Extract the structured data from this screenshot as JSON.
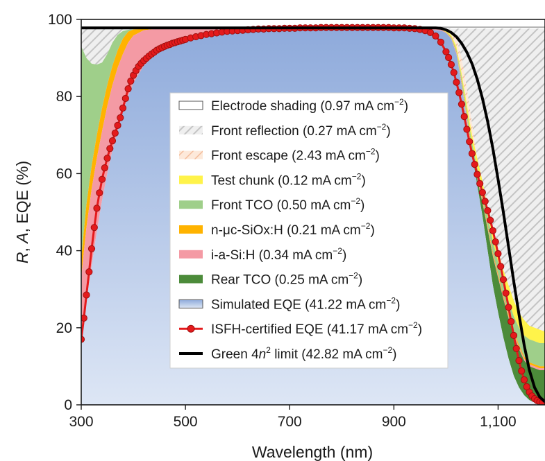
{
  "chart_data": {
    "type": "area",
    "xlabel": "Wavelength (nm)",
    "ylabel": "R, A, EQE (%)",
    "xlim": [
      300,
      1190
    ],
    "ylim": [
      0,
      100
    ],
    "x_ticks": [
      300,
      500,
      700,
      900,
      1100
    ],
    "x_tick_labels": [
      "300",
      "500",
      "700",
      "900",
      "1,100"
    ],
    "y_ticks": [
      0,
      20,
      40,
      60,
      80,
      100
    ],
    "y_tick_labels": [
      "0",
      "20",
      "40",
      "60",
      "80",
      "100"
    ],
    "colors": {
      "electrode": "#ffffff",
      "reflection": "#dcdcdc",
      "escape": "#fbe0cc",
      "test_chunk": "#fff34a",
      "front_tco": "#9fcf8a",
      "n_layer": "#ffb300",
      "i_layer": "#f49aa4",
      "rear_tco": "#4c8b3a",
      "sim_top": "#8eaadb",
      "sim_bottom": "#dde6f5",
      "isfh": "#e41a1c",
      "isfh_marker_stroke": "#a01010",
      "green_limit": "#000000"
    },
    "legend": [
      {
        "key": "electrode",
        "label": "Electrode shading (0.97 mA cm",
        "sup": "−2",
        "end": ")"
      },
      {
        "key": "reflection",
        "label": "Front reflection (0.27 mA cm",
        "sup": "−2",
        "end": ")"
      },
      {
        "key": "escape",
        "label": "Front escape (2.43 mA cm",
        "sup": "−2",
        "end": ")"
      },
      {
        "key": "test_chunk",
        "label": "Test chunk (0.12 mA cm",
        "sup": "−2",
        "end": ")"
      },
      {
        "key": "front_tco",
        "label": "Front TCO (0.50 mA cm",
        "sup": "−2",
        "end": ")"
      },
      {
        "key": "n_layer",
        "label": "n-μc-SiOx:H (0.21 mA cm",
        "sup": "−2",
        "end": ")"
      },
      {
        "key": "i_layer",
        "label": "i-a-Si:H (0.34 mA cm",
        "sup": "−2",
        "end": ")"
      },
      {
        "key": "rear_tco",
        "label": "Rear TCO (0.25 mA cm",
        "sup": "−2",
        "end": ")"
      },
      {
        "key": "simulated",
        "label": "Simulated EQE (41.22 mA cm",
        "sup": "−2",
        "end": ")"
      },
      {
        "key": "isfh",
        "label": "ISFH-certified EQE (41.17 mA cm",
        "sup": "−2",
        "end": ")"
      },
      {
        "key": "green",
        "label_pre": "Green 4",
        "label_n": "n",
        "label_2": "2",
        "label": " limit (42.82 mA cm",
        "sup": "−2",
        "end": ")"
      }
    ],
    "boundaries": {
      "x": [
        300,
        310,
        320,
        330,
        340,
        350,
        360,
        370,
        380,
        390,
        400,
        420,
        440,
        460,
        480,
        500,
        550,
        600,
        650,
        700,
        750,
        800,
        850,
        900,
        950,
        970,
        990,
        1000,
        1010,
        1020,
        1030,
        1040,
        1050,
        1060,
        1070,
        1080,
        1090,
        1100,
        1110,
        1120,
        1130,
        1140,
        1150,
        1160,
        1170,
        1180,
        1190
      ],
      "electrode_top": [
        98,
        98,
        98,
        98,
        98,
        98,
        98,
        98,
        98,
        98,
        98,
        98,
        98,
        98,
        98,
        98,
        98,
        98,
        98,
        98,
        98,
        98,
        98,
        98,
        98,
        98,
        98,
        98,
        98,
        98,
        98,
        98,
        98,
        98,
        98,
        98,
        98,
        98,
        98,
        98,
        98,
        98,
        98,
        98,
        98,
        98,
        98
      ],
      "reflection_top": [
        97.6,
        97.6,
        97.6,
        97.6,
        97.6,
        97.6,
        97.6,
        97.6,
        97.6,
        97.6,
        97.6,
        97.6,
        97.6,
        97.6,
        97.6,
        97.6,
        97.6,
        97.6,
        97.6,
        97.6,
        97.6,
        97.6,
        97.6,
        97.6,
        97.6,
        97.6,
        97.6,
        97.6,
        97.6,
        97.6,
        97.6,
        97.6,
        97.6,
        97.6,
        97.6,
        97.6,
        97.6,
        97.6,
        97.6,
        97.6,
        97.6,
        97.6,
        97.6,
        97.6,
        97.6,
        97.6,
        97.6
      ],
      "escape_top": [
        93,
        90,
        88.5,
        88.3,
        88.8,
        91,
        94,
        96,
        97,
        97.3,
        97.4,
        97.5,
        97.5,
        97.5,
        97.5,
        97.5,
        97.5,
        97.5,
        97.5,
        97.5,
        97.5,
        97.5,
        97.5,
        97.5,
        97.5,
        97.5,
        97.4,
        97.2,
        96.5,
        95,
        90,
        82,
        73,
        64,
        56,
        48,
        40,
        33,
        27,
        21,
        16,
        11.5,
        8,
        5.5,
        3.5,
        2,
        1
      ],
      "test_top": [
        93,
        90,
        88.5,
        88.3,
        88.8,
        91,
        94,
        96,
        97,
        97.3,
        97.4,
        97.5,
        97.5,
        97.5,
        97.5,
        97.5,
        97.5,
        97.5,
        97.5,
        97.5,
        97.5,
        97.5,
        97.5,
        97.5,
        97.5,
        97.5,
        97.4,
        97,
        96,
        93,
        86,
        78,
        70,
        64,
        58,
        51,
        45,
        40,
        35,
        31,
        27,
        24,
        22,
        20.5,
        20,
        19.5,
        19
      ],
      "fronttco_top": [
        93,
        90,
        88.5,
        88.3,
        88.8,
        91,
        94,
        96,
        97,
        97.3,
        97.4,
        97.5,
        97.5,
        97.5,
        97.5,
        97.5,
        97.5,
        97.5,
        97.5,
        97.5,
        97.5,
        97.5,
        97.5,
        97.5,
        97.5,
        97.5,
        97.4,
        96.8,
        95.6,
        92.2,
        85,
        76.5,
        68,
        61.5,
        56,
        49,
        42.5,
        37,
        32,
        27,
        23,
        20,
        18,
        17,
        16.5,
        16,
        16
      ],
      "n_top": [
        38,
        52,
        62,
        70,
        77,
        83,
        88,
        92,
        95,
        96.8,
        97.4,
        97.5,
        97.5,
        97.5,
        97.5,
        97.5,
        97.5,
        97.5,
        97.5,
        97.5,
        97.5,
        97.5,
        97.5,
        97.5,
        97.5,
        97.5,
        97.4,
        96.7,
        95.4,
        91.7,
        84,
        75,
        66,
        59.5,
        53.5,
        46.5,
        39.5,
        34,
        28.5,
        23.5,
        19,
        15.5,
        12.5,
        11,
        10.5,
        10,
        10
      ],
      "i_top": [
        33,
        46,
        56,
        64,
        71,
        77.5,
        83,
        87.5,
        91,
        94,
        95.8,
        97.2,
        97.5,
        97.5,
        97.5,
        97.5,
        97.5,
        97.5,
        97.5,
        97.5,
        97.5,
        97.5,
        97.5,
        97.5,
        97.5,
        97.5,
        97.4,
        96.6,
        95.2,
        91.4,
        83.5,
        74.5,
        65.5,
        59,
        53,
        46,
        39,
        33.5,
        28,
        23,
        18.5,
        15,
        12,
        10.5,
        10,
        9.5,
        9.5
      ],
      "rear_top": [
        18,
        27,
        36,
        45,
        53,
        60,
        66,
        71,
        76,
        80,
        83.5,
        88,
        90.6,
        92.4,
        93.6,
        94.4,
        95.8,
        96.6,
        97,
        97.3,
        97.5,
        97.6,
        97.6,
        97.5,
        97.4,
        97.3,
        97.1,
        96.5,
        95,
        91,
        83,
        74,
        65,
        58.5,
        52.5,
        45.5,
        38.5,
        33,
        27.5,
        22.5,
        18,
        14.5,
        11.5,
        10,
        9.5,
        9,
        9
      ],
      "sim_top": [
        18,
        27,
        36,
        45,
        53,
        60,
        66,
        71,
        76,
        80,
        83.5,
        88,
        90.6,
        92.4,
        93.6,
        94.4,
        95.8,
        96.6,
        97,
        97.3,
        97.5,
        97.6,
        97.6,
        97.5,
        97.4,
        97.3,
        97.1,
        96.5,
        95,
        91,
        83,
        74,
        65,
        57,
        49,
        40,
        31,
        24,
        17.5,
        12,
        7.5,
        4.5,
        2.5,
        1.2,
        0.6,
        0.3,
        0.2
      ]
    },
    "series": [
      {
        "name": "ISFH-certified EQE",
        "x": [
          300,
          305,
          310,
          315,
          320,
          325,
          330,
          335,
          340,
          345,
          350,
          355,
          360,
          365,
          370,
          375,
          380,
          385,
          390,
          395,
          400,
          405,
          410,
          415,
          420,
          425,
          430,
          435,
          440,
          445,
          450,
          455,
          460,
          465,
          470,
          475,
          480,
          485,
          490,
          495,
          500,
          510,
          520,
          530,
          540,
          550,
          560,
          570,
          580,
          590,
          600,
          610,
          620,
          630,
          640,
          650,
          660,
          670,
          680,
          690,
          700,
          710,
          720,
          730,
          740,
          750,
          760,
          770,
          780,
          790,
          800,
          810,
          820,
          830,
          840,
          850,
          860,
          870,
          880,
          890,
          900,
          910,
          920,
          930,
          940,
          950,
          960,
          970,
          980,
          990,
          1000,
          1005,
          1010,
          1015,
          1020,
          1025,
          1030,
          1035,
          1040,
          1045,
          1050,
          1055,
          1060,
          1065,
          1070,
          1075,
          1080,
          1085,
          1090,
          1095,
          1100,
          1105,
          1110,
          1115,
          1120,
          1125,
          1130,
          1135,
          1140,
          1145,
          1150,
          1155,
          1160,
          1165,
          1170,
          1175,
          1180,
          1185
        ],
        "y": [
          17,
          22.5,
          28.5,
          34.5,
          40.5,
          46,
          51,
          55,
          58.5,
          61.5,
          64,
          66.5,
          68.5,
          70.5,
          72.5,
          74.5,
          77,
          79.5,
          82,
          84,
          85.5,
          86.7,
          87.8,
          88.6,
          89.3,
          89.9,
          90.5,
          91,
          91.5,
          92,
          92.4,
          92.7,
          93,
          93.3,
          93.5,
          93.8,
          94,
          94.2,
          94.4,
          94.6,
          94.8,
          95.2,
          95.5,
          95.8,
          96.1,
          96.3,
          96.5,
          96.7,
          96.9,
          97,
          97.1,
          97.2,
          97.3,
          97.4,
          97.5,
          97.5,
          97.6,
          97.6,
          97.6,
          97.7,
          97.7,
          97.7,
          97.8,
          97.8,
          97.8,
          97.8,
          97.9,
          97.9,
          97.9,
          97.9,
          97.9,
          97.9,
          97.9,
          97.9,
          97.9,
          97.9,
          97.9,
          97.9,
          97.9,
          97.9,
          97.8,
          97.8,
          97.8,
          97.7,
          97.6,
          97.4,
          97.1,
          96.6,
          95.7,
          94.1,
          91.6,
          90.1,
          88.3,
          86.2,
          83.7,
          81,
          78,
          74.8,
          71.5,
          68.3,
          65.2,
          62.4,
          59.8,
          57.4,
          55.1,
          52.8,
          50.4,
          47.9,
          45.2,
          42.3,
          39.2,
          35.9,
          32.5,
          29,
          25.3,
          21.6,
          18,
          14.6,
          11.5,
          8.8,
          6.5,
          4.7,
          3.3,
          2.3,
          1.6,
          1.1,
          0.8,
          0.6
        ]
      },
      {
        "name": "Green 4n² limit",
        "x": [
          300,
          980,
          990,
          1000,
          1010,
          1020,
          1030,
          1040,
          1050,
          1060,
          1070,
          1080,
          1090,
          1100,
          1110,
          1120,
          1130,
          1140,
          1150,
          1160,
          1170,
          1180,
          1190
        ],
        "y": [
          97.8,
          97.8,
          97.7,
          97.3,
          96.6,
          95.5,
          93.8,
          91.5,
          88.5,
          84.5,
          79.5,
          73.5,
          66.5,
          58.5,
          50,
          41,
          32,
          23.5,
          15.5,
          9,
          4.5,
          2,
          0.8
        ]
      }
    ]
  }
}
